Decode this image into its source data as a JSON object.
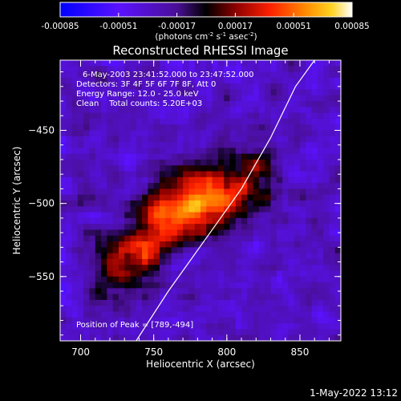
{
  "colorbar": {
    "tick_labels": [
      "-0.00085",
      "-0.00051",
      "-0.00017",
      "0.00017",
      "0.00051",
      "0.00085"
    ],
    "units_main": "(photons cm",
    "units_exp1": "-2",
    "units_mid": " s",
    "units_exp2": "-1",
    "units_mid2": " asec",
    "units_exp3": "-2",
    "units_end": ")"
  },
  "plot": {
    "title": "Reconstructed RHESSI Image",
    "info_lines": [
      "6-May-2003 23:41:52.000 to 23:47:52.000",
      "Detectors: 3F 4F 5F 6F 7F 8F, Att 0",
      "Energy Range: 12.0 - 25.0 keV",
      "Clean    Total counts: 5.20E+03"
    ],
    "peak_label": "Position of Peak = [789,-494]"
  },
  "footer": {
    "timestamp": "1-May-2022 13:12"
  },
  "chart_data": {
    "type": "heatmap",
    "title": "Reconstructed RHESSI Image",
    "xlabel": "Heliocentric X (arcsec)",
    "ylabel": "Heliocentric Y (arcsec)",
    "xlim": [
      686,
      878
    ],
    "ylim": [
      -594,
      -402
    ],
    "x_ticks": [
      700,
      750,
      800,
      850
    ],
    "y_ticks": [
      -450,
      -500,
      -550
    ],
    "color_range": [
      -0.00085,
      0.00085
    ],
    "colorbar_ticks": [
      -0.00085,
      -0.00051,
      -0.00017,
      0.00017,
      0.00051,
      0.00085
    ],
    "colorbar_units": "(photons cm-2 s-1 asec-2)",
    "colormap": "blue-purple-black-red-orange-yellow-white",
    "peak": {
      "x": 789,
      "y": -494,
      "value": 0.00085
    },
    "source_components": [
      {
        "x": 789,
        "y": -494,
        "rx": 30,
        "ry": 20,
        "value": 0.00085
      },
      {
        "x": 762,
        "y": -510,
        "rx": 22,
        "ry": 15,
        "value": 0.00072
      },
      {
        "x": 742,
        "y": -535,
        "rx": 18,
        "ry": 18,
        "value": 0.00055
      },
      {
        "x": 718,
        "y": -548,
        "rx": 16,
        "ry": 22,
        "value": 0.0004
      },
      {
        "x": 820,
        "y": -470,
        "rx": 12,
        "ry": 14,
        "value": 0.0003
      }
    ],
    "limb_curve": {
      "x": [
        738,
        760,
        785,
        810,
        830,
        847,
        860
      ],
      "y": [
        -594,
        -560,
        -525,
        -490,
        -455,
        -420,
        -402
      ]
    },
    "grid": false,
    "legend": "none"
  }
}
